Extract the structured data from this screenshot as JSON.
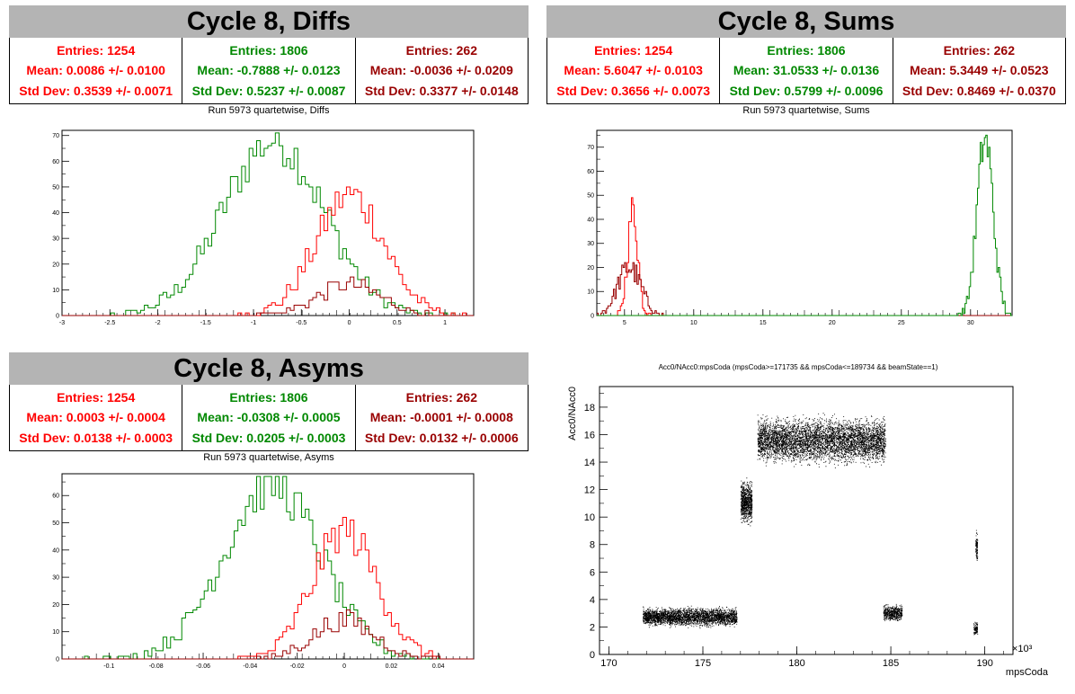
{
  "colors": {
    "red": "#ff0000",
    "green": "#008800",
    "darkred": "#990000"
  },
  "panels": {
    "diffs": {
      "title": "Cycle 8, Diffs",
      "subtitle": "Run 5973 quartetwise, Diffs",
      "stats": [
        {
          "entries": "Entries: 1254",
          "mean": "Mean: 0.0086 +/- 0.0100",
          "std": "Std Dev: 0.3539 +/- 0.0071"
        },
        {
          "entries": "Entries: 1806",
          "mean": "Mean: -0.7888 +/- 0.0123",
          "std": "Std Dev: 0.5237 +/- 0.0087"
        },
        {
          "entries": "Entries: 262",
          "mean": "Mean: -0.0036 +/- 0.0209",
          "std": "Std Dev: 0.3377 +/- 0.0148"
        }
      ]
    },
    "sums": {
      "title": "Cycle 8, Sums",
      "subtitle": "Run 5973 quartetwise, Sums",
      "stats": [
        {
          "entries": "Entries: 1254",
          "mean": "Mean: 5.6047 +/- 0.0103",
          "std": "Std Dev: 0.3656 +/- 0.0073"
        },
        {
          "entries": "Entries: 1806",
          "mean": "Mean: 31.0533 +/- 0.0136",
          "std": "Std Dev: 0.5799 +/- 0.0096"
        },
        {
          "entries": "Entries: 262",
          "mean": "Mean: 5.3449 +/- 0.0523",
          "std": "Std Dev: 0.8469 +/- 0.0370"
        }
      ]
    },
    "asyms": {
      "title": "Cycle 8, Asyms",
      "subtitle": "Run 5973 quartetwise, Asyms",
      "stats": [
        {
          "entries": "Entries: 1254",
          "mean": "Mean: 0.0003 +/- 0.0004",
          "std": "Std Dev: 0.0138 +/- 0.0003"
        },
        {
          "entries": "Entries: 1806",
          "mean": "Mean: -0.0308 +/- 0.0005",
          "std": "Std Dev: 0.0205 +/- 0.0003"
        },
        {
          "entries": "Entries: 262",
          "mean": "Mean: -0.0001 +/- 0.0008",
          "std": "Std Dev: 0.0132 +/- 0.0006"
        }
      ]
    }
  },
  "chart_data": [
    {
      "id": "diffs",
      "type": "line",
      "xlim": [
        -3,
        1.3
      ],
      "ylim": [
        0,
        72
      ],
      "xticks": [
        -3,
        -2.5,
        -2,
        -1.5,
        -1,
        -0.5,
        0,
        0.5,
        1
      ],
      "yticks": [
        0,
        10,
        20,
        30,
        40,
        50,
        60,
        70
      ],
      "series": [
        {
          "color": "green",
          "mean": -0.7888,
          "std": 0.5237,
          "peak": 68
        },
        {
          "color": "red",
          "mean": 0.0086,
          "std": 0.3539,
          "peak": 47
        },
        {
          "color": "darkred",
          "mean": -0.0036,
          "std": 0.3377,
          "peak": 12
        }
      ]
    },
    {
      "id": "sums",
      "type": "line",
      "xlim": [
        3,
        33
      ],
      "ylim": [
        0,
        77
      ],
      "xticks": [
        5,
        10,
        15,
        20,
        25,
        30
      ],
      "yticks": [
        0,
        10,
        20,
        30,
        40,
        50,
        60,
        70
      ],
      "series": [
        {
          "color": "red",
          "mean": 5.6047,
          "std": 0.3656,
          "peak": 44
        },
        {
          "color": "darkred",
          "mean": 5.3449,
          "std": 0.8469,
          "peak": 20
        },
        {
          "color": "green",
          "mean": 31.0533,
          "std": 0.5799,
          "peak": 74
        }
      ]
    },
    {
      "id": "asyms",
      "type": "line",
      "xlim": [
        -0.12,
        0.055
      ],
      "ylim": [
        0,
        68
      ],
      "xticks": [
        -0.1,
        -0.08,
        -0.06,
        -0.04,
        -0.02,
        0,
        0.02,
        0.04
      ],
      "yticks": [
        0,
        10,
        20,
        30,
        40,
        50,
        60
      ],
      "series": [
        {
          "color": "green",
          "mean": -0.0308,
          "std": 0.0205,
          "peak": 64
        },
        {
          "color": "red",
          "mean": 0.0003,
          "std": 0.0138,
          "peak": 47
        },
        {
          "color": "darkred",
          "mean": -0.0001,
          "std": 0.0132,
          "peak": 14
        }
      ]
    },
    {
      "id": "scatter",
      "type": "scatter",
      "title": "Acc0/NAcc0:mpsCoda (mpsCoda>=171735 && mpsCoda<=189734 && beamState==1)",
      "xlabel": "mpsCoda",
      "ylabel": "Acc0/NAcc0",
      "x_multiplier": "×10³",
      "xlim": [
        169.5,
        191.5
      ],
      "ylim": [
        0,
        19.5
      ],
      "xticks": [
        170,
        175,
        180,
        185,
        190
      ],
      "yticks": [
        0,
        2,
        4,
        6,
        8,
        10,
        12,
        14,
        16,
        18
      ],
      "clusters": [
        {
          "x": [
            171.8,
            176.8
          ],
          "y": [
            1.9,
            3.6
          ]
        },
        {
          "x": [
            177.0,
            177.6
          ],
          "y": [
            9.2,
            13.1
          ]
        },
        {
          "x": [
            177.9,
            184.7
          ],
          "y": [
            13.5,
            17.7
          ]
        },
        {
          "x": [
            184.6,
            185.6
          ],
          "y": [
            2.3,
            3.8
          ]
        },
        {
          "x": [
            189.4,
            189.6
          ],
          "y": [
            1.2,
            2.6
          ]
        },
        {
          "x": [
            189.5,
            189.6
          ],
          "y": [
            6.5,
            9.2
          ]
        }
      ]
    }
  ]
}
